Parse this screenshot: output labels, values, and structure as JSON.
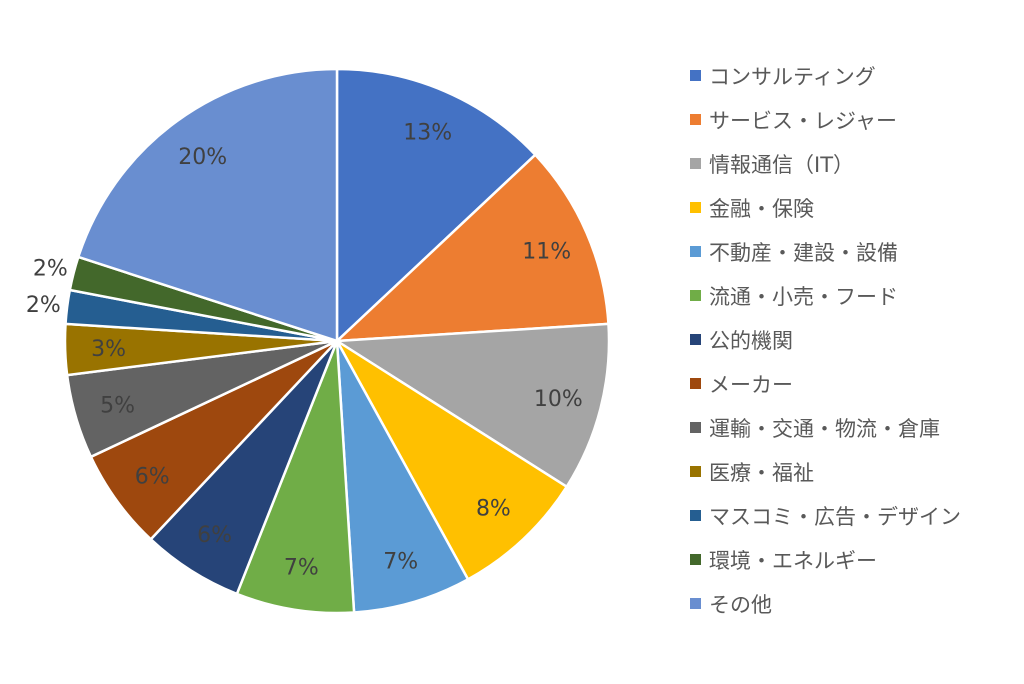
{
  "chart_data": {
    "type": "pie",
    "title": "",
    "start_angle_deg": 0,
    "direction": "clockwise",
    "legend_position": "right",
    "slices": [
      {
        "label": "コンサルティング",
        "value": 13,
        "data_label": "13%",
        "color": "#4472C4"
      },
      {
        "label": "サービス・レジャー",
        "value": 11,
        "data_label": "11%",
        "color": "#ED7D31"
      },
      {
        "label": "情報通信（IT）",
        "value": 10,
        "data_label": "10%",
        "color": "#A5A5A5"
      },
      {
        "label": "金融・保険",
        "value": 8,
        "data_label": "8%",
        "color": "#FFC000"
      },
      {
        "label": "不動産・建設・設備",
        "value": 7,
        "data_label": "7%",
        "color": "#5B9BD5"
      },
      {
        "label": "流通・小売・フード",
        "value": 7,
        "data_label": "7%",
        "color": "#70AD47"
      },
      {
        "label": "公的機関",
        "value": 6,
        "data_label": "6%",
        "color": "#264478"
      },
      {
        "label": "メーカー",
        "value": 6,
        "data_label": "6%",
        "color": "#9E480E"
      },
      {
        "label": "運輸・交通・物流・倉庫",
        "value": 5,
        "data_label": "5%",
        "color": "#636363"
      },
      {
        "label": "医療・福祉",
        "value": 3,
        "data_label": "3%",
        "color": "#997300"
      },
      {
        "label": "マスコミ・広告・デザイン",
        "value": 2,
        "data_label": "2%",
        "color": "#255E91"
      },
      {
        "label": "環境・エネルギー",
        "value": 2,
        "data_label": "2%",
        "color": "#43682B"
      },
      {
        "label": "その他",
        "value": 20,
        "data_label": "20%",
        "color": "#698ED0"
      }
    ]
  }
}
